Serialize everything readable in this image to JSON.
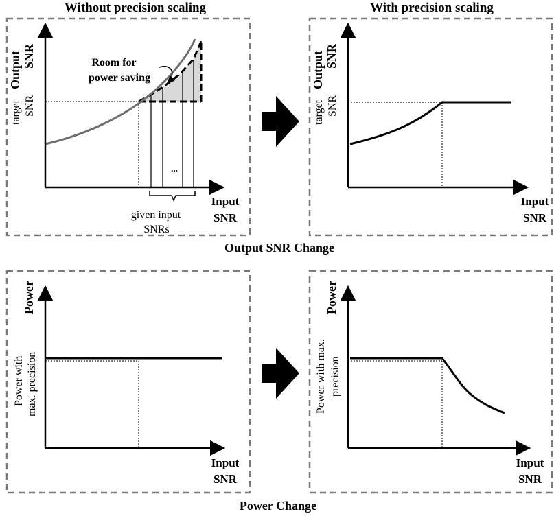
{
  "titles": {
    "left": "Without precision scaling",
    "right": "With precision scaling"
  },
  "sections": {
    "output": "Output SNR Change",
    "power": "Power Change"
  },
  "axes": {
    "output_y_1": "Output",
    "output_y_2": "SNR",
    "target_1": "target",
    "target_2": "SNR",
    "input_x_1": "Input",
    "input_x_2": "SNR",
    "power_y": "Power",
    "power_max_left_1": "Power with",
    "power_max_left_2": "max. precision",
    "power_max_right_1": "Power with max.",
    "power_max_right_2": "precision"
  },
  "annotations": {
    "room_1": "Room for",
    "room_2": "power saving",
    "given_1": "given input",
    "given_2": "SNRs",
    "ellipsis": "..."
  },
  "colors": {
    "curve_gray": "#6e6e6e",
    "shade": "#d9d9d9",
    "frame_dash": "#7a7a7a"
  }
}
